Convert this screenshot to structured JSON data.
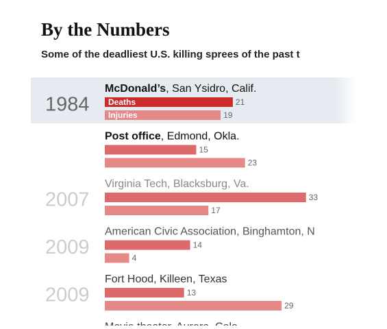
{
  "chart_data": {
    "type": "bar",
    "title": "By the Numbers",
    "subtitle": "Some of the deadliest U.S. killing sprees of the past t",
    "years": [
      "1984",
      null,
      "2007",
      "2009",
      "2009",
      null
    ],
    "venues": [
      "McDonald’s",
      "Post office",
      "Virginia Tech",
      "American Civic Association",
      "Fort Hood",
      "Movie theater"
    ],
    "places": [
      ", San Ysidro, Calif.",
      ", Edmond, Okla.",
      ", Blacksburg, Va.",
      ", Binghamton, N",
      ", Killeen, Texas",
      ", Aurora, Colo."
    ],
    "series": [
      {
        "name": "Deaths",
        "color": "#cc2b2b",
        "values": [
          21,
          15,
          33,
          14,
          13,
          null
        ]
      },
      {
        "name": "Injuries",
        "color": "#e58888",
        "values": [
          19,
          23,
          17,
          4,
          29,
          null
        ]
      }
    ]
  }
}
